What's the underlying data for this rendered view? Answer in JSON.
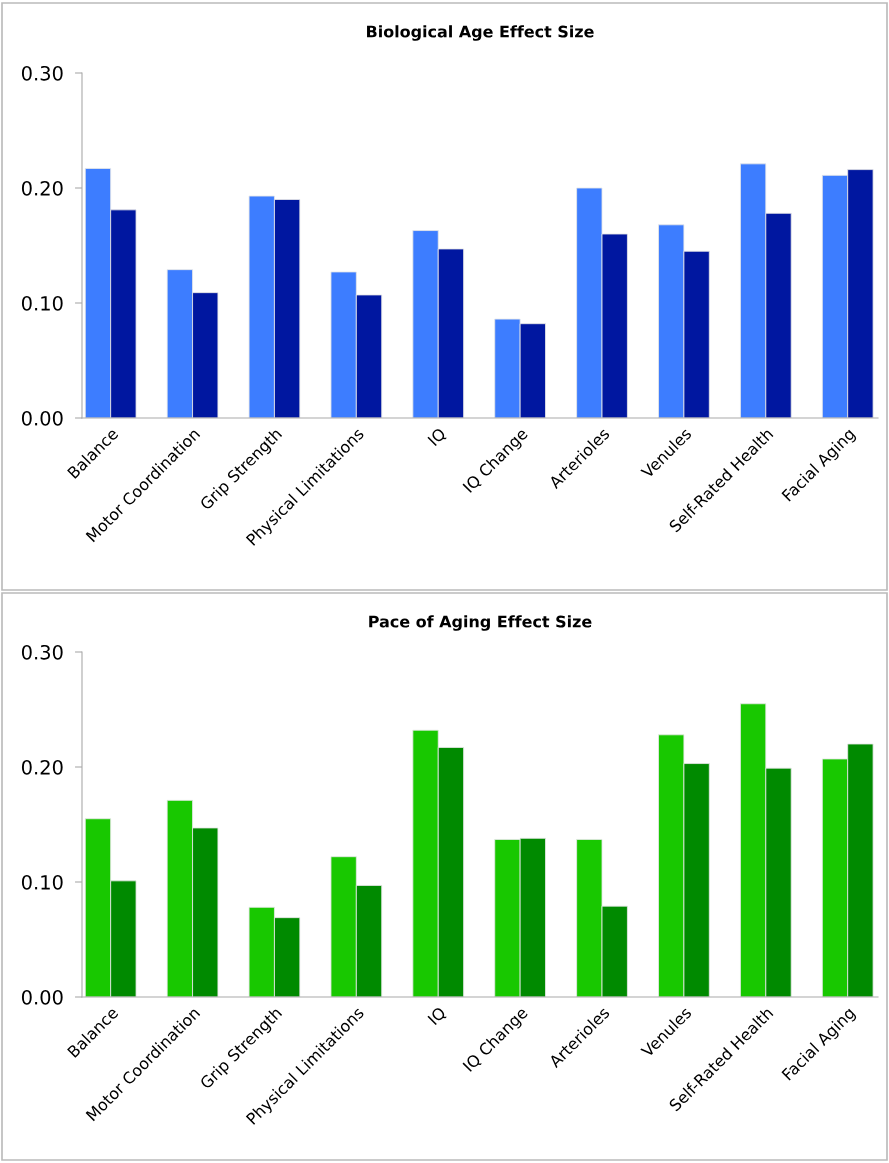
{
  "chart_data": [
    {
      "type": "bar",
      "title": "Biological Age Effect Size",
      "categories": [
        "Balance",
        "Motor Coordination",
        "Grip Strength",
        "Physical Limitations",
        "IQ",
        "IQ Change",
        "Arterioles",
        "Venules",
        "Self-Rated Health",
        "Facial Aging"
      ],
      "series": [
        {
          "color": "#3d7dff",
          "values": [
            0.217,
            0.129,
            0.193,
            0.127,
            0.163,
            0.086,
            0.2,
            0.168,
            0.221,
            0.211
          ]
        },
        {
          "color": "#0017a0",
          "values": [
            0.181,
            0.109,
            0.19,
            0.107,
            0.147,
            0.082,
            0.16,
            0.145,
            0.178,
            0.216
          ]
        }
      ],
      "ylim": [
        0,
        0.3
      ],
      "yticks": [
        {
          "value": 0,
          "label": "0.00"
        },
        {
          "value": 0.1,
          "label": "0.10"
        },
        {
          "value": 0.2,
          "label": "0.20"
        },
        {
          "value": 0.3,
          "label": "0.30"
        }
      ],
      "grid": false,
      "legend": false
    },
    {
      "type": "bar",
      "title": "Pace of Aging Effect Size",
      "categories": [
        "Balance",
        "Motor Coordination",
        "Grip Strength",
        "Physical Limitations",
        "IQ",
        "IQ Change",
        "Arterioles",
        "Venules",
        "Self-Rated Health",
        "Facial Aging"
      ],
      "series": [
        {
          "color": "#18c800",
          "values": [
            0.155,
            0.171,
            0.078,
            0.122,
            0.232,
            0.137,
            0.137,
            0.228,
            0.255,
            0.207
          ]
        },
        {
          "color": "#008a00",
          "values": [
            0.101,
            0.147,
            0.069,
            0.097,
            0.217,
            0.138,
            0.079,
            0.203,
            0.199,
            0.22
          ]
        }
      ],
      "ylim": [
        0,
        0.3
      ],
      "yticks": [
        {
          "value": 0,
          "label": "0.00"
        },
        {
          "value": 0.1,
          "label": "0.10"
        },
        {
          "value": 0.2,
          "label": "0.20"
        },
        {
          "value": 0.3,
          "label": "0.30"
        }
      ],
      "grid": false,
      "legend": false
    }
  ]
}
